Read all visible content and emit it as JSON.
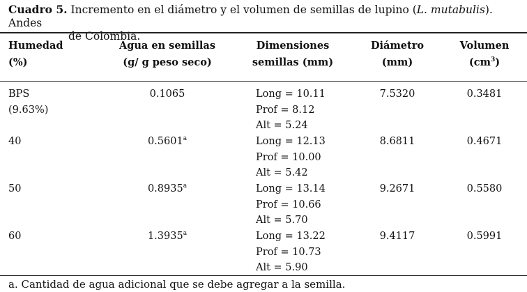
{
  "caption": {
    "label": "Cuadro 5.",
    "text_before_species": " Incremento en el diámetro y el volumen de semillas de lupino (",
    "species": "L. mutabulis",
    "text_after_species": "). Andes",
    "line2": "de Colombia."
  },
  "headers": {
    "humedad": [
      "Humedad",
      "(%)"
    ],
    "agua": [
      "Agua en semillas",
      "(g/ g peso seco)"
    ],
    "dimensiones": [
      "Dimensiones",
      "semillas (mm)"
    ],
    "diametro": [
      "Diámetro",
      "(mm)"
    ],
    "volumen_label": "Volumen",
    "volumen_unit_open": "(cm",
    "volumen_unit_sup": "3",
    "volumen_unit_close": ")"
  },
  "rows": [
    {
      "humedad": [
        "BPS",
        "(9.63%)"
      ],
      "agua": "0.1065",
      "agua_sup": "",
      "dims": [
        "Long = 10.11",
        "Prof = 8.12",
        "Alt = 5.24"
      ],
      "diametro": "7.5320",
      "volumen": "0.3481"
    },
    {
      "humedad": [
        "40",
        ""
      ],
      "agua": "0.5601",
      "agua_sup": "a",
      "dims": [
        "Long = 12.13",
        "Prof = 10.00",
        "Alt = 5.42"
      ],
      "diametro": "8.6811",
      "volumen": "0.4671"
    },
    {
      "humedad": [
        "50",
        ""
      ],
      "agua": "0.8935",
      "agua_sup": "a",
      "dims": [
        "Long = 13.14",
        "Prof = 10.66",
        "Alt = 5.70"
      ],
      "diametro": "9.2671",
      "volumen": "0.5580"
    },
    {
      "humedad": [
        "60",
        ""
      ],
      "agua": "1.3935",
      "agua_sup": "a",
      "dims": [
        "Long = 13.22",
        "Prof = 10.73",
        "Alt = 5.90"
      ],
      "diametro": "9.4117",
      "volumen": "0.5991"
    }
  ],
  "footnote": "a. Cantidad de agua adicional que se debe agregar a la semilla."
}
